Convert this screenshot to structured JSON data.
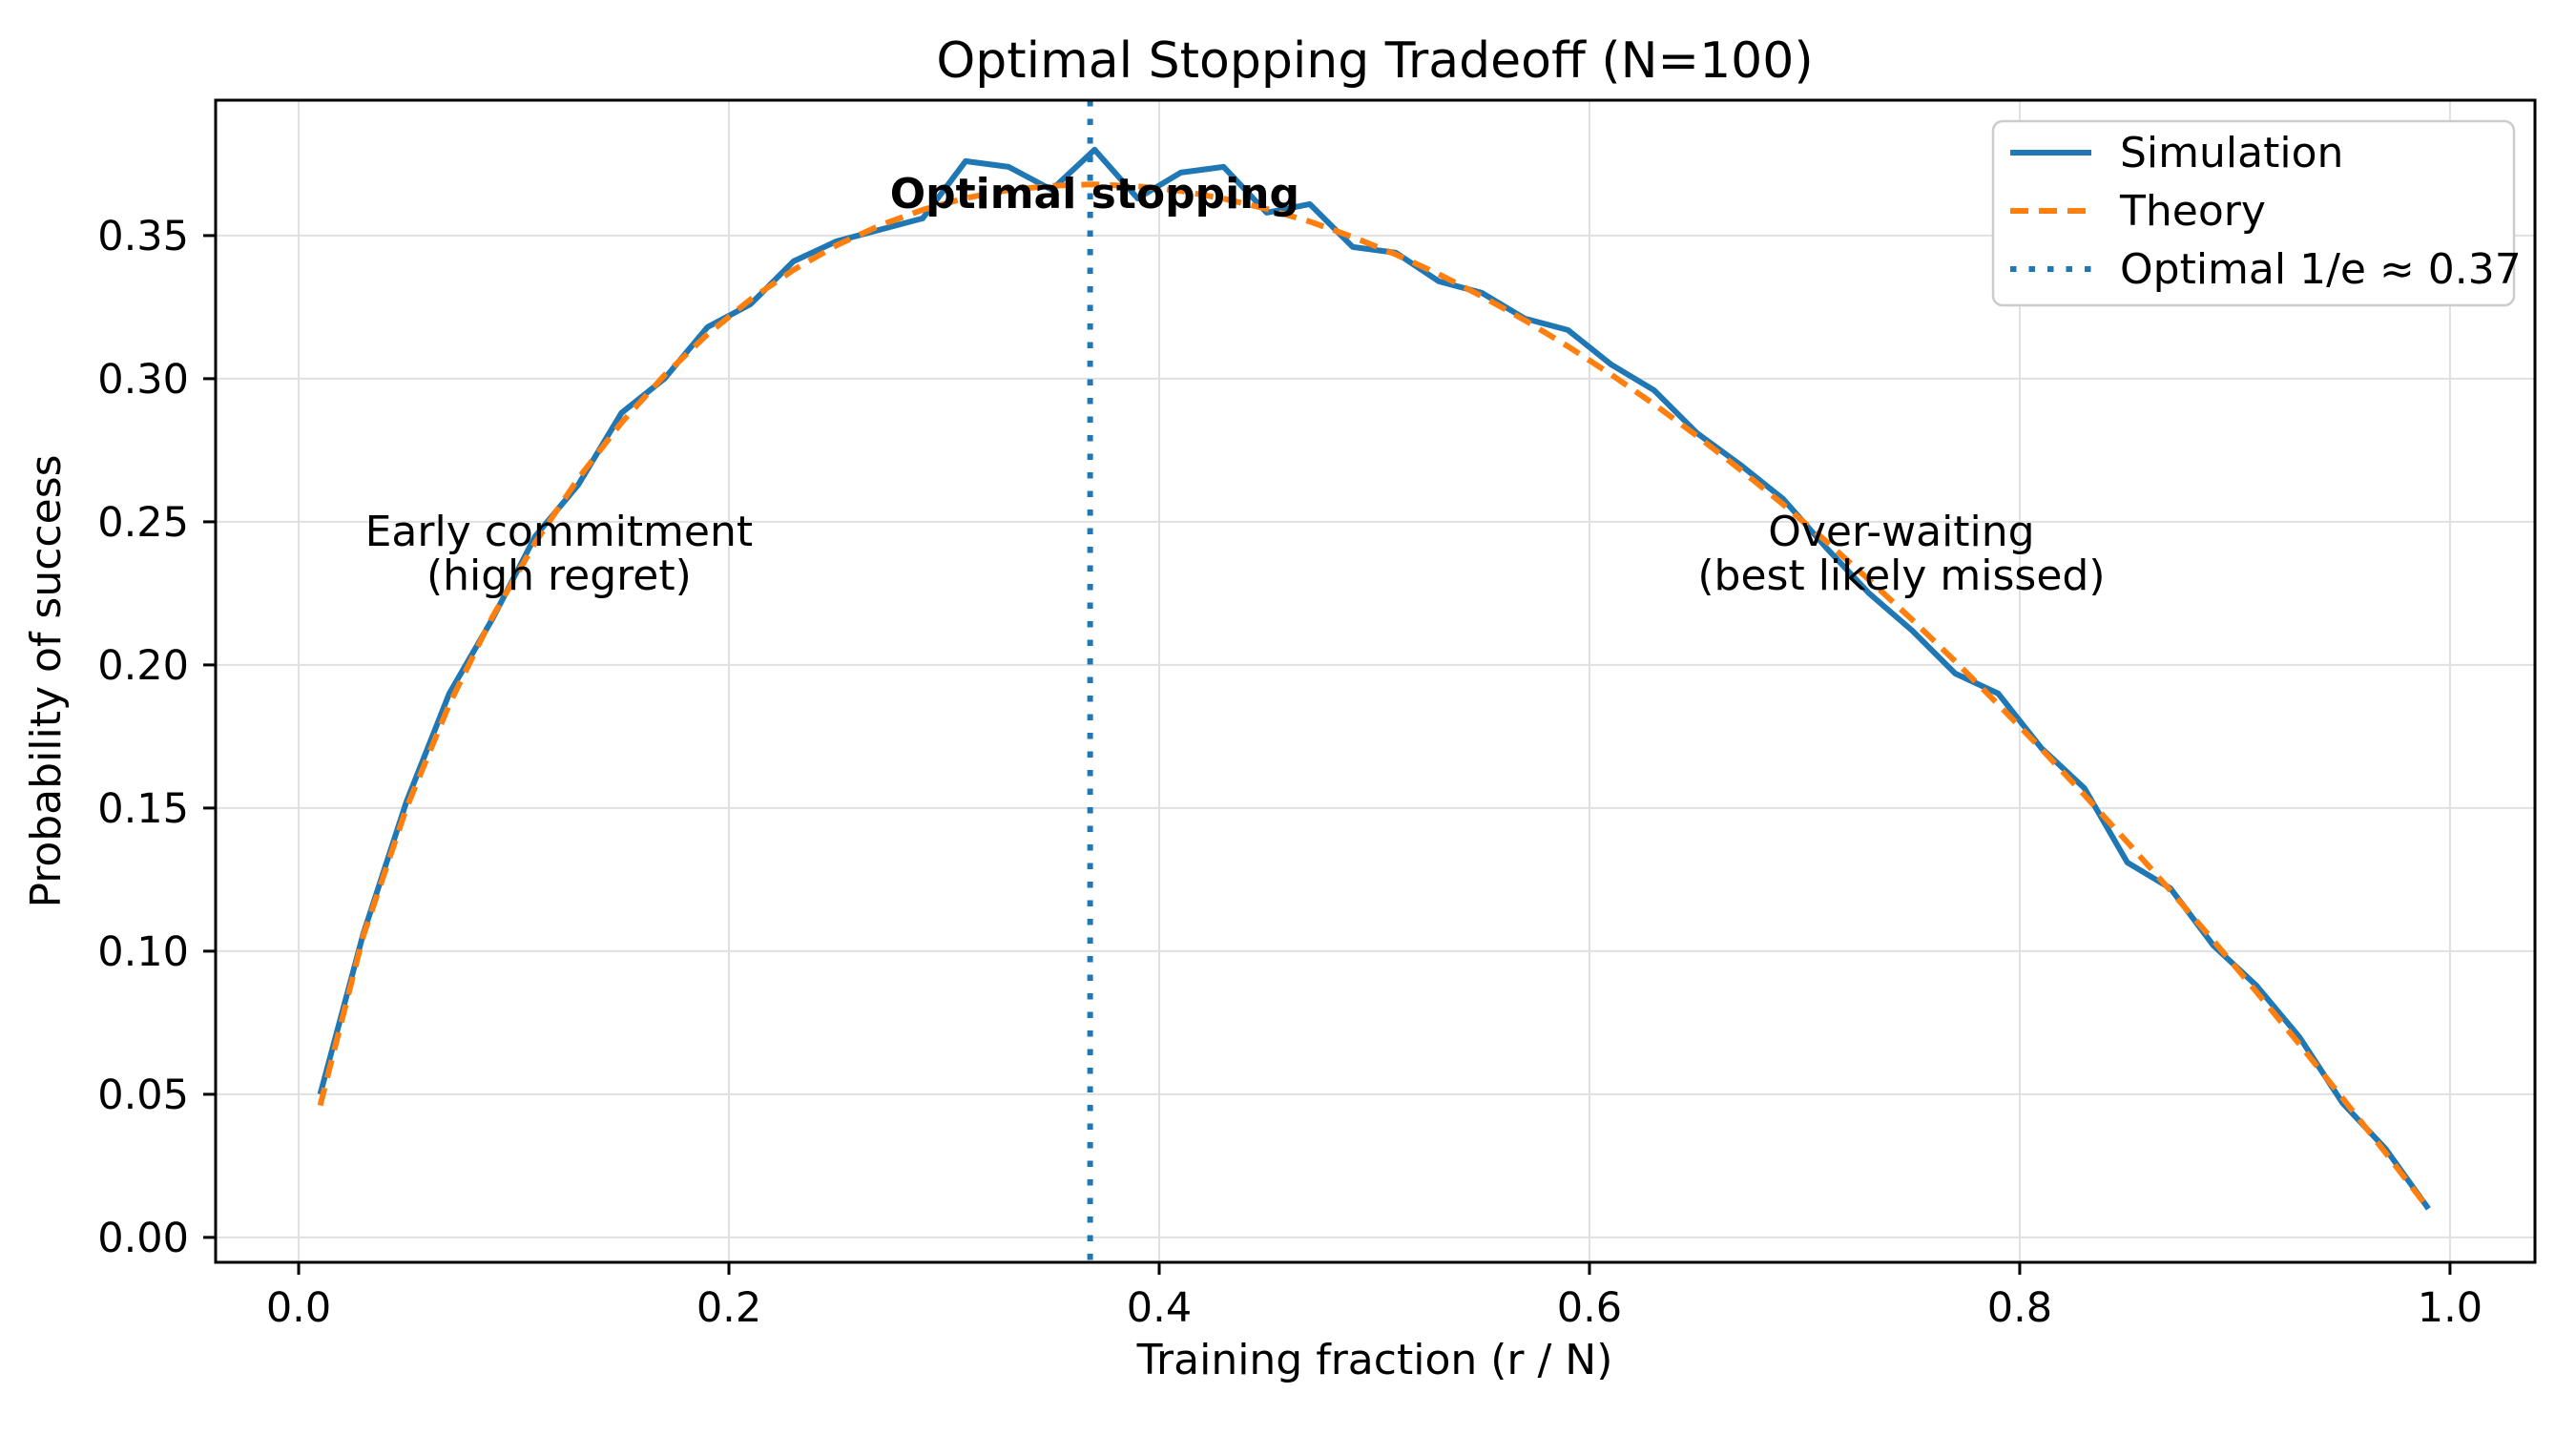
{
  "figure": {
    "background": "#ffffff"
  },
  "chart_data": {
    "type": "line",
    "title": "Optimal Stopping Tradeoff (N=100)",
    "xlabel": "Training fraction (r / N)",
    "ylabel": "Probability of success",
    "grid": true,
    "xlim": [
      -0.0386,
      1.0395
    ],
    "ylim": [
      -0.0087,
      0.3973
    ],
    "x_ticks": {
      "values": [
        0.0,
        0.2,
        0.4,
        0.6,
        0.8,
        1.0
      ],
      "labels": [
        "0.0",
        "0.2",
        "0.4",
        "0.6",
        "0.8",
        "1.0"
      ]
    },
    "y_ticks": {
      "values": [
        0.0,
        0.05,
        0.1,
        0.15,
        0.2,
        0.25,
        0.3,
        0.35
      ],
      "labels": [
        "0.00",
        "0.05",
        "0.10",
        "0.15",
        "0.20",
        "0.25",
        "0.30",
        "0.35"
      ]
    },
    "x": [
      0.01,
      0.03,
      0.05,
      0.07,
      0.09,
      0.11,
      0.13,
      0.15,
      0.17,
      0.19,
      0.21,
      0.23,
      0.25,
      0.27,
      0.29,
      0.31,
      0.33,
      0.35,
      0.37,
      0.39,
      0.41,
      0.43,
      0.45,
      0.47,
      0.49,
      0.51,
      0.53,
      0.55,
      0.57,
      0.59,
      0.61,
      0.63,
      0.65,
      0.67,
      0.69,
      0.71,
      0.73,
      0.75,
      0.77,
      0.79,
      0.81,
      0.83,
      0.85,
      0.87,
      0.89,
      0.91,
      0.93,
      0.95,
      0.97,
      0.99
    ],
    "series": [
      {
        "name": "Simulation",
        "color": "#1f77b4",
        "line_style": "solid",
        "y": [
          0.05,
          0.106,
          0.152,
          0.19,
          0.216,
          0.245,
          0.263,
          0.288,
          0.3,
          0.318,
          0.326,
          0.341,
          0.348,
          0.352,
          0.356,
          0.376,
          0.374,
          0.366,
          0.38,
          0.363,
          0.372,
          0.374,
          0.358,
          0.361,
          0.346,
          0.344,
          0.334,
          0.33,
          0.321,
          0.317,
          0.305,
          0.296,
          0.281,
          0.27,
          0.258,
          0.241,
          0.225,
          0.212,
          0.197,
          0.19,
          0.171,
          0.157,
          0.131,
          0.122,
          0.102,
          0.088,
          0.07,
          0.047,
          0.031,
          0.01
        ]
      },
      {
        "name": "Theory",
        "color": "#ff7f0e",
        "line_style": "dashed",
        "y": [
          0.0461,
          0.1052,
          0.1498,
          0.1862,
          0.2167,
          0.2428,
          0.2652,
          0.2846,
          0.3012,
          0.3155,
          0.3277,
          0.338,
          0.3466,
          0.3535,
          0.359,
          0.3631,
          0.3659,
          0.3674,
          0.3679,
          0.3672,
          0.3656,
          0.3629,
          0.3593,
          0.3549,
          0.3495,
          0.3434,
          0.3365,
          0.3288,
          0.3204,
          0.3113,
          0.3015,
          0.2911,
          0.28,
          0.2683,
          0.2561,
          0.2432,
          0.2297,
          0.2158,
          0.2013,
          0.1862,
          0.1707,
          0.1546,
          0.1381,
          0.1212,
          0.1037,
          0.0858,
          0.0675,
          0.0487,
          0.0296,
          0.01
        ]
      }
    ],
    "vline": {
      "label": "Optimal 1/e ≈ 0.37",
      "x": 0.3679,
      "color": "#1f77b4",
      "line_style": "dotted"
    },
    "annotations": [
      {
        "text_lines": [
          "Early commitment",
          "(high regret)"
        ],
        "x": 0.121,
        "y": 0.2467,
        "bold": false
      },
      {
        "text_lines": [
          "Over-waiting",
          "(best likely missed)"
        ],
        "x": 0.745,
        "y": 0.2467,
        "bold": false
      },
      {
        "text_lines": [
          "Optimal stopping"
        ],
        "x": 0.37,
        "y": 0.3647,
        "bold": true
      }
    ],
    "legend": {
      "position": "upper right",
      "entries": [
        {
          "label": "Simulation",
          "color": "#1f77b4",
          "line_style": "solid"
        },
        {
          "label": "Theory",
          "color": "#ff7f0e",
          "line_style": "dashed"
        },
        {
          "label": "Optimal 1/e ≈ 0.37",
          "color": "#1f77b4",
          "line_style": "dotted"
        }
      ]
    },
    "colors": {
      "grid": "#e0e0e0",
      "axes": "#000000",
      "text": "#000000",
      "legend_border": "#cccccc",
      "legend_background": "#ffffff"
    }
  }
}
